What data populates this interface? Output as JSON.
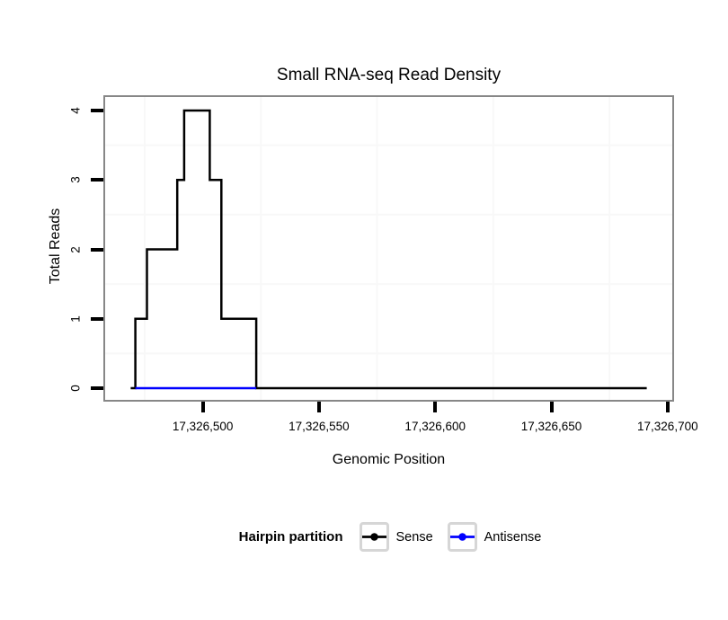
{
  "chart_data": {
    "type": "step-line",
    "title": "Small RNA-seq Read Density",
    "xlabel": "Genomic Position",
    "ylabel": "Total Reads",
    "legend_title": "Hairpin partition",
    "xlim": [
      17326458,
      17326702
    ],
    "ylim": [
      -0.168,
      4.194
    ],
    "grid": "minor-only",
    "gridline_color": "#f8f8f8",
    "panel_border_color": "#878787",
    "x_ticks": [
      {
        "value": 17326500,
        "label": "17,326,500"
      },
      {
        "value": 17326550,
        "label": "17,326,550"
      },
      {
        "value": 17326600,
        "label": "17,326,600"
      },
      {
        "value": 17326650,
        "label": "17,326,650"
      },
      {
        "value": 17326700,
        "label": "17,326,700"
      }
    ],
    "y_ticks": [
      {
        "value": 0,
        "label": "0"
      },
      {
        "value": 1,
        "label": "1"
      },
      {
        "value": 2,
        "label": "2"
      },
      {
        "value": 3,
        "label": "3"
      },
      {
        "value": 4,
        "label": "4"
      }
    ],
    "x_minor_gridlines": [
      17326475,
      17326525,
      17326575,
      17326625,
      17326675
    ],
    "y_minor_gridlines": [
      0.5,
      1.5,
      2.5,
      3.5
    ],
    "legend_position": "bottom",
    "series": [
      {
        "name": "Sense",
        "color": "#000000",
        "segments": [
          [
            17326469,
            17326471,
            0
          ],
          [
            17326471,
            17326476,
            1
          ],
          [
            17326476,
            17326489,
            2
          ],
          [
            17326489,
            17326492,
            3
          ],
          [
            17326492,
            17326503,
            4
          ],
          [
            17326503,
            17326508,
            3
          ],
          [
            17326508,
            17326523,
            1
          ],
          [
            17326523,
            17326691,
            0
          ]
        ]
      },
      {
        "name": "Antisense",
        "color": "#0000FF",
        "segments": [
          [
            17326471,
            17326523,
            0
          ]
        ]
      }
    ]
  }
}
